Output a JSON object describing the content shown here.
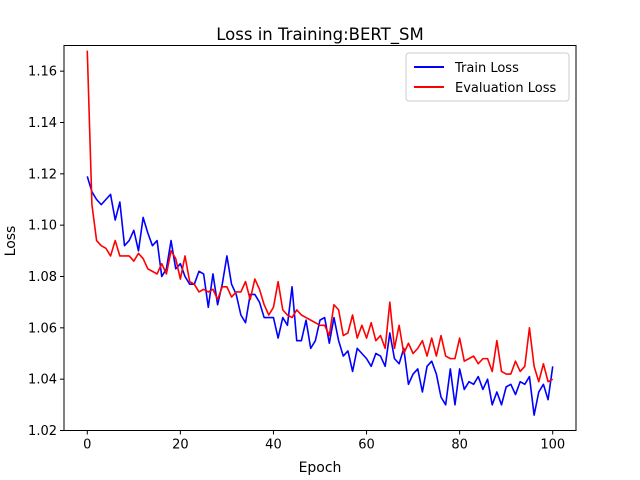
{
  "chart_data": {
    "type": "line",
    "title": "Loss in Training:BERT_SM",
    "xlabel": "Epoch",
    "ylabel": "Loss",
    "xlim": [
      -5,
      105
    ],
    "ylim": [
      1.02,
      1.17
    ],
    "xticks": [
      0,
      20,
      40,
      60,
      80,
      100
    ],
    "yticks": [
      1.02,
      1.04,
      1.06,
      1.08,
      1.1,
      1.12,
      1.14,
      1.16
    ],
    "grid": false,
    "legend_position": "top-right",
    "x": [
      0,
      1,
      2,
      3,
      4,
      5,
      6,
      7,
      8,
      9,
      10,
      11,
      12,
      13,
      14,
      15,
      16,
      17,
      18,
      19,
      20,
      21,
      22,
      23,
      24,
      25,
      26,
      27,
      28,
      29,
      30,
      31,
      32,
      33,
      34,
      35,
      36,
      37,
      38,
      39,
      40,
      41,
      42,
      43,
      44,
      45,
      46,
      47,
      48,
      49,
      50,
      51,
      52,
      53,
      54,
      55,
      56,
      57,
      58,
      59,
      60,
      61,
      62,
      63,
      64,
      65,
      66,
      67,
      68,
      69,
      70,
      71,
      72,
      73,
      74,
      75,
      76,
      77,
      78,
      79,
      80,
      81,
      82,
      83,
      84,
      85,
      86,
      87,
      88,
      89,
      90,
      91,
      92,
      93,
      94,
      95,
      96,
      97,
      98,
      99,
      100
    ],
    "series": [
      {
        "name": "Train Loss",
        "color": "#0000ff",
        "values": [
          1.119,
          1.113,
          1.11,
          1.108,
          1.11,
          1.112,
          1.102,
          1.109,
          1.092,
          1.094,
          1.098,
          1.09,
          1.103,
          1.097,
          1.092,
          1.094,
          1.08,
          1.083,
          1.094,
          1.083,
          1.085,
          1.08,
          1.077,
          1.077,
          1.082,
          1.081,
          1.068,
          1.081,
          1.069,
          1.077,
          1.088,
          1.077,
          1.073,
          1.065,
          1.062,
          1.073,
          1.073,
          1.07,
          1.064,
          1.064,
          1.064,
          1.056,
          1.064,
          1.061,
          1.076,
          1.055,
          1.055,
          1.063,
          1.052,
          1.055,
          1.063,
          1.064,
          1.054,
          1.064,
          1.055,
          1.049,
          1.051,
          1.043,
          1.052,
          1.05,
          1.048,
          1.045,
          1.05,
          1.049,
          1.045,
          1.058,
          1.048,
          1.046,
          1.052,
          1.038,
          1.042,
          1.044,
          1.035,
          1.045,
          1.047,
          1.042,
          1.033,
          1.03,
          1.044,
          1.03,
          1.044,
          1.036,
          1.039,
          1.038,
          1.041,
          1.036,
          1.04,
          1.03,
          1.035,
          1.03,
          1.037,
          1.038,
          1.034,
          1.039,
          1.038,
          1.041,
          1.026,
          1.035,
          1.038,
          1.032,
          1.045
        ]
      },
      {
        "name": "Evaluation Loss",
        "color": "#ff0000",
        "values": [
          1.168,
          1.108,
          1.094,
          1.092,
          1.091,
          1.088,
          1.094,
          1.088,
          1.088,
          1.088,
          1.086,
          1.089,
          1.087,
          1.083,
          1.082,
          1.081,
          1.085,
          1.081,
          1.09,
          1.087,
          1.079,
          1.088,
          1.078,
          1.077,
          1.074,
          1.075,
          1.074,
          1.075,
          1.071,
          1.076,
          1.076,
          1.072,
          1.074,
          1.074,
          1.078,
          1.071,
          1.079,
          1.075,
          1.069,
          1.065,
          1.068,
          1.078,
          1.067,
          1.065,
          1.064,
          1.067,
          1.065,
          1.064,
          1.063,
          1.062,
          1.061,
          1.061,
          1.057,
          1.069,
          1.067,
          1.057,
          1.058,
          1.065,
          1.056,
          1.061,
          1.056,
          1.062,
          1.055,
          1.057,
          1.052,
          1.07,
          1.052,
          1.061,
          1.05,
          1.054,
          1.05,
          1.052,
          1.055,
          1.049,
          1.056,
          1.049,
          1.057,
          1.049,
          1.048,
          1.048,
          1.056,
          1.047,
          1.048,
          1.049,
          1.046,
          1.048,
          1.048,
          1.043,
          1.055,
          1.043,
          1.042,
          1.042,
          1.047,
          1.043,
          1.045,
          1.06,
          1.045,
          1.039,
          1.046,
          1.039,
          1.04
        ]
      }
    ]
  }
}
